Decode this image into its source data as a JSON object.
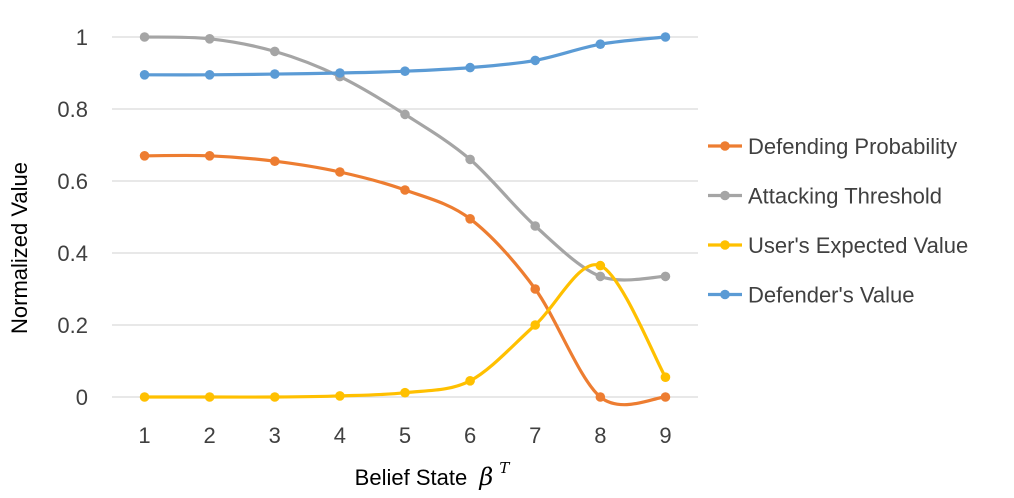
{
  "chart_data": {
    "type": "line",
    "xlabel": "Belief State",
    "xlabel_math_base": "β",
    "xlabel_math_sup": "T",
    "ylabel": "Normalized Value",
    "x": [
      1,
      2,
      3,
      4,
      5,
      6,
      7,
      8,
      9
    ],
    "x_tick_labels": [
      "1",
      "2",
      "3",
      "4",
      "5",
      "6",
      "7",
      "8",
      "9"
    ],
    "ylim": [
      0,
      1
    ],
    "y_ticks": [
      0,
      0.2,
      0.4,
      0.6,
      0.8,
      1
    ],
    "y_tick_labels": [
      "0",
      "0.2",
      "0.4",
      "0.6",
      "0.8",
      "1"
    ],
    "grid": "horizontal",
    "legend_position": "right",
    "series": [
      {
        "name": "Defending Probability",
        "color": "#ed7d31",
        "values": [
          0.67,
          0.67,
          0.655,
          0.625,
          0.575,
          0.495,
          0.3,
          0.0,
          0.0
        ]
      },
      {
        "name": "Attacking Threshold",
        "color": "#a5a5a5",
        "values": [
          1.0,
          0.995,
          0.96,
          0.89,
          0.785,
          0.66,
          0.475,
          0.335,
          0.335
        ]
      },
      {
        "name": "User's Expected Value",
        "color": "#ffc000",
        "values": [
          0.0,
          0.0,
          0.0,
          0.003,
          0.012,
          0.045,
          0.2,
          0.365,
          0.055
        ]
      },
      {
        "name": "Defender's Value",
        "color": "#5b9bd5",
        "values": [
          0.895,
          0.895,
          0.897,
          0.9,
          0.905,
          0.915,
          0.935,
          0.98,
          1.0
        ]
      }
    ]
  }
}
